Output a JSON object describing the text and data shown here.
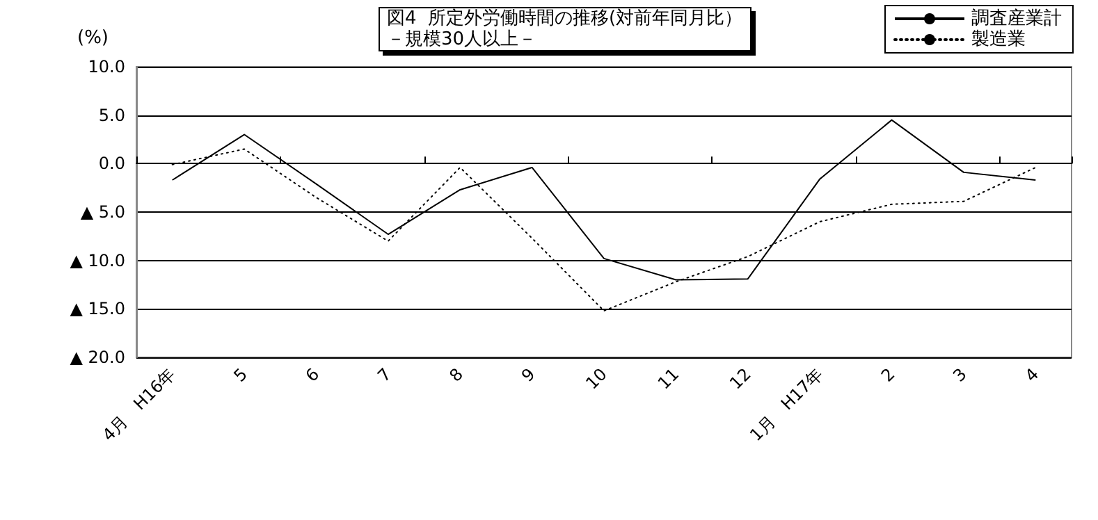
{
  "chart_data": {
    "type": "line",
    "title": "図4  所定外労働時間の推移(対前年同月比）",
    "subtitle": "－規模30人以上－",
    "ylabel": "(%)",
    "categories": [
      "4月　H16年",
      "5",
      "6",
      "7",
      "8",
      "9",
      "10",
      "11",
      "12",
      "1月　H17年",
      "2",
      "3",
      "4"
    ],
    "series": [
      {
        "name": "調査産業計",
        "color": "#000000",
        "line_style": "solid",
        "values": [
          -1.7,
          3.0,
          -2.1,
          -7.3,
          -2.7,
          -0.4,
          -9.8,
          -12.0,
          -11.9,
          -1.6,
          4.5,
          -0.9,
          -1.7
        ]
      },
      {
        "name": "製造業",
        "color": "#000000",
        "line_style": "dotted",
        "values": [
          -0.1,
          1.5,
          -3.5,
          -8.0,
          -0.4,
          -7.7,
          -15.2,
          -12.2,
          -9.6,
          -6.0,
          -4.2,
          -3.9,
          -0.4
        ]
      }
    ],
    "ylim": [
      -20,
      10
    ],
    "yticks": [
      {
        "value": -20,
        "label": "▲ 20.0"
      },
      {
        "value": -15,
        "label": "▲ 15.0"
      },
      {
        "value": -10,
        "label": "▲ 10.0"
      },
      {
        "value": -5,
        "label": "▲ 5.0"
      },
      {
        "value": 0,
        "label": "0.0"
      },
      {
        "value": 5,
        "label": "5.0"
      },
      {
        "value": 10,
        "label": "10.0"
      }
    ],
    "grid": "y",
    "legend": "top right",
    "marker": "none"
  }
}
